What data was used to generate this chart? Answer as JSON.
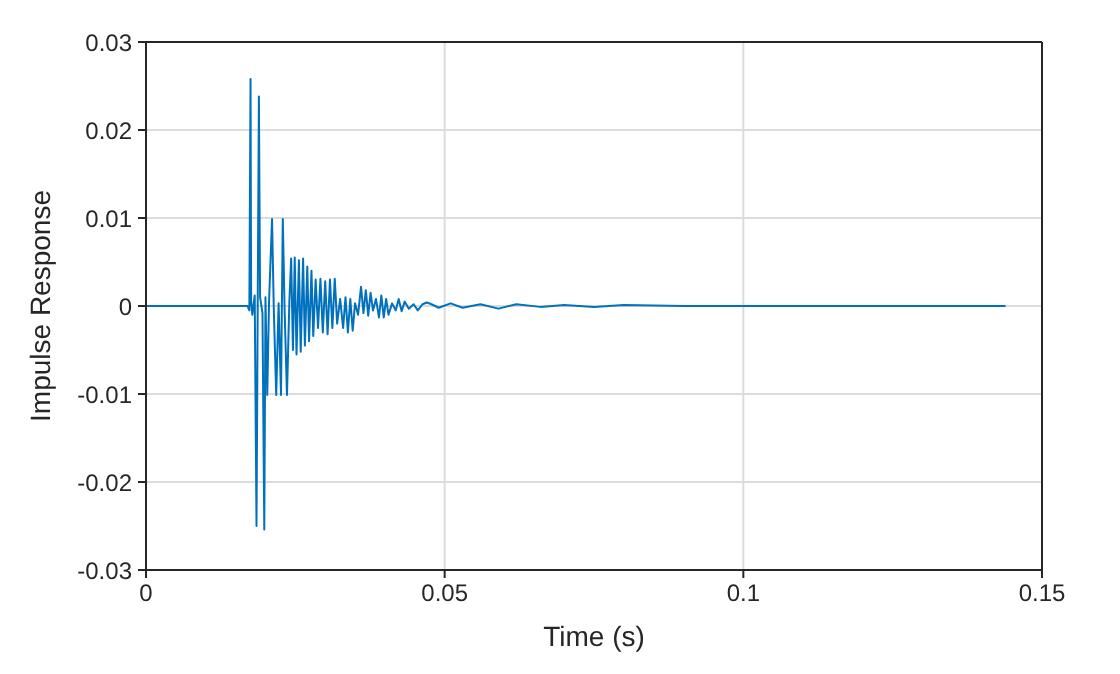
{
  "chart_data": {
    "type": "line",
    "xlabel": "Time (s)",
    "ylabel": "Impulse Response",
    "xlim": [
      0,
      0.15
    ],
    "xticks": [
      0,
      0.05,
      0.1,
      0.15
    ],
    "ylim": [
      -0.03,
      0.03
    ],
    "yticks": [
      -0.03,
      -0.02,
      -0.01,
      0,
      0.01,
      0.02,
      0.03
    ],
    "grid": true,
    "marker": "none",
    "line_style": "solid",
    "x": [
      0,
      0.017,
      0.0173,
      0.0175,
      0.0176,
      0.0178,
      0.0182,
      0.0185,
      0.0187,
      0.0189,
      0.0191,
      0.0195,
      0.0198,
      0.02,
      0.0203,
      0.0206,
      0.0211,
      0.0214,
      0.0218,
      0.0222,
      0.0226,
      0.0229,
      0.0232,
      0.0236,
      0.024,
      0.0243,
      0.0246,
      0.0249,
      0.0252,
      0.0256,
      0.0259,
      0.0263,
      0.0266,
      0.027,
      0.0273,
      0.0277,
      0.028,
      0.0284,
      0.0288,
      0.0292,
      0.0296,
      0.03,
      0.0304,
      0.0308,
      0.0312,
      0.0316,
      0.032,
      0.0325,
      0.033,
      0.0334,
      0.0338,
      0.0342,
      0.0346,
      0.035,
      0.0355,
      0.036,
      0.0364,
      0.0368,
      0.0372,
      0.0376,
      0.038,
      0.0385,
      0.039,
      0.0394,
      0.0398,
      0.0402,
      0.0406,
      0.0412,
      0.0418,
      0.0423,
      0.0428,
      0.0433,
      0.044,
      0.0448,
      0.0455,
      0.0463,
      0.047,
      0.0478,
      0.049,
      0.051,
      0.053,
      0.056,
      0.059,
      0.062,
      0.066,
      0.07,
      0.075,
      0.08,
      0.09,
      0.1,
      0.1439
    ],
    "series": [
      {
        "color": "#0072bd",
        "values": [
          0,
          0,
          -0.0005,
          0.0258,
          0.0005,
          -0.001,
          0.0012,
          -0.025,
          0,
          0.0238,
          0.001,
          -0.0008,
          -0.0254,
          0.001,
          -0.0101,
          0.0005,
          0.0099,
          -0.0005,
          -0.0101,
          0.0003,
          -0.0101,
          0.0099,
          -0.0003,
          -0.0101,
          0.0005,
          0.0054,
          -0.005,
          0.0055,
          -0.0055,
          0.0052,
          -0.0052,
          0.0054,
          -0.0045,
          0.0045,
          -0.004,
          0.004,
          -0.0034,
          0.003,
          -0.0025,
          0.0031,
          -0.003,
          0.0028,
          -0.0032,
          0.003,
          -0.0025,
          0.0031,
          -0.002,
          0.0008,
          -0.0025,
          0.001,
          -0.003,
          0.0008,
          -0.0028,
          0.0003,
          -0.001,
          0.0022,
          -0.0008,
          0.0018,
          -0.0011,
          0.0015,
          -0.0005,
          0.0008,
          -0.0013,
          0.0012,
          -0.0013,
          0.0008,
          -0.001,
          0.0003,
          -0.0005,
          0.0008,
          -0.0006,
          0.0005,
          -0.0003,
          0.0002,
          -0.0005,
          0.0002,
          0.0004,
          0.0002,
          -0.0002,
          0.0003,
          -0.0002,
          0.0002,
          -0.0003,
          0.0002,
          -0.0001,
          0.0001,
          -0.0001,
          0.0001,
          0,
          0,
          0
        ]
      }
    ]
  }
}
